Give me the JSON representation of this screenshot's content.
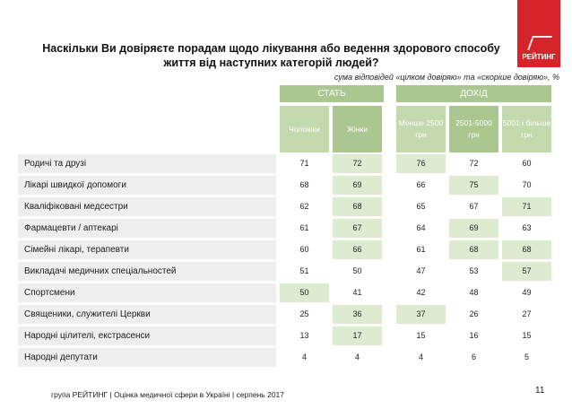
{
  "title": "Наскільки Ви довіряєте порадам щодо лікування або ведення здорового способу життя від наступних категорій людей?",
  "logo_text": "РЕЙТИНГ",
  "subtitle": "сума відповідей «цілком довіряю» та «скоріше довіряю», %",
  "groups": {
    "sex": "СТАТЬ",
    "income": "ДОХІД"
  },
  "columns": [
    "Чоловіки",
    "Жінки",
    "Менше 2500 грн",
    "2501-5000 грн",
    "5001 і більше грн"
  ],
  "rows": [
    {
      "label": "Родичі та друзі",
      "values": [
        "71",
        "72",
        "76",
        "72",
        "60"
      ],
      "highlight": [
        1,
        2
      ]
    },
    {
      "label": "Лікарі швидкої допомоги",
      "values": [
        "68",
        "69",
        "66",
        "75",
        "70"
      ],
      "highlight": [
        1,
        3
      ]
    },
    {
      "label": "Кваліфіковані медсестри",
      "values": [
        "62",
        "68",
        "65",
        "67",
        "71"
      ],
      "highlight": [
        1,
        4
      ]
    },
    {
      "label": "Фармацевти / аптекарі",
      "values": [
        "61",
        "67",
        "64",
        "69",
        "63"
      ],
      "highlight": [
        1,
        3
      ]
    },
    {
      "label": "Сімейні лікарі, терапевти",
      "values": [
        "60",
        "66",
        "61",
        "68",
        "68"
      ],
      "highlight": [
        1,
        3,
        4
      ]
    },
    {
      "label": "Викладачі медичних спеціальностей",
      "values": [
        "51",
        "50",
        "47",
        "53",
        "57"
      ],
      "highlight": [
        4
      ]
    },
    {
      "label": "Спортсмени",
      "values": [
        "50",
        "41",
        "42",
        "48",
        "49"
      ],
      "highlight": [
        0
      ]
    },
    {
      "label": "Священики, служителі Церкви",
      "values": [
        "25",
        "36",
        "37",
        "26",
        "27"
      ],
      "highlight": [
        1,
        2
      ]
    },
    {
      "label": "Народні цілителі, екстрасенси",
      "values": [
        "13",
        "17",
        "15",
        "16",
        "15"
      ],
      "highlight": [
        1
      ]
    },
    {
      "label": "Народні депутати",
      "values": [
        "4",
        "4",
        "4",
        "6",
        "5"
      ],
      "highlight": []
    }
  ],
  "footer": "група РЕЙТИНГ  |  Оцінка медичної сфери в Україні  |  серпень 2017",
  "page_number": "11",
  "colors": {
    "header_green": "#a9c78e",
    "highlight_green": "#ddebd0",
    "label_gray": "#eeeeee",
    "logo_red": "#d6242b"
  }
}
